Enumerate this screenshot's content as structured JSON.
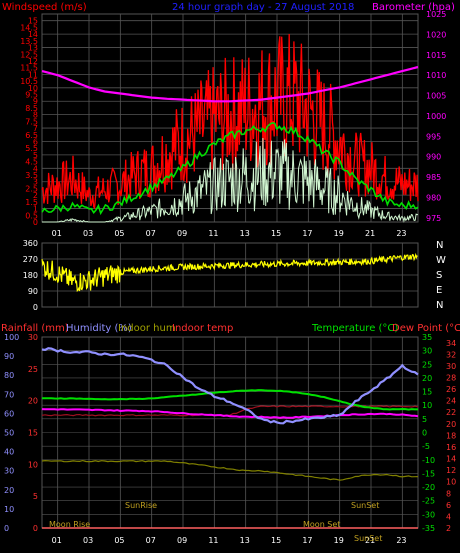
{
  "header": {
    "left_title": "Windspeed (m/s)",
    "center_title": "24 hour graph day - 27 August 2018",
    "right_title": "Barometer (hpa)"
  },
  "bottom_header": {
    "rainfall": "Rainfall (mm)",
    "humidity": "Humidity (%)",
    "indoor_hum": "Indoor hum",
    "indoor_temp": "Indoor temp",
    "temperature": "Temperature (°C)",
    "dew_point": "Dew Point (°C)"
  },
  "colors": {
    "wind_gust": "#ff0000",
    "wind_avg": "#00e000",
    "wind_low": "#d0f5d0",
    "barometer": "#ff00ff",
    "direction": "#ffff00",
    "humidity": "#9090ff",
    "indoor_hum": "#808000",
    "indoor_temp": "#a01020",
    "temperature": "#00e000",
    "dew_point": "#ff2020",
    "rainfall": "#ff6060",
    "grid": "#555555"
  },
  "chart_data": [
    {
      "type": "line",
      "title": "24 hour graph day - 27 August 2018",
      "xlabel": "",
      "x_ticks": [
        "01",
        "03",
        "05",
        "07",
        "09",
        "11",
        "13",
        "15",
        "17",
        "19",
        "21",
        "23"
      ],
      "y_left_label": "Windspeed (m/s)",
      "y_left_ticks": [
        "0",
        "0.5",
        "1",
        "1.5",
        "2",
        "2.5",
        "3",
        "3.5",
        "4",
        "4.5",
        "5",
        "5.5",
        "6",
        "6.5",
        "7",
        "7.5",
        "8",
        "8.5",
        "9",
        "9.5",
        "10",
        "10.5",
        "11",
        "11.5",
        "12",
        "12.5",
        "13",
        "13.5",
        "14",
        "14.5",
        "15"
      ],
      "ylim_left": [
        0,
        15.5
      ],
      "y_right_label": "Barometer (hpa)",
      "y_right_ticks": [
        "975",
        "980",
        "985",
        "990",
        "995",
        "1000",
        "1005",
        "1010",
        "1015",
        "1020",
        "1025"
      ],
      "ylim_right": [
        974,
        1025
      ],
      "x_hours": [
        0,
        1,
        2,
        3,
        4,
        5,
        6,
        7,
        8,
        9,
        10,
        11,
        12,
        13,
        14,
        15,
        16,
        17,
        18,
        19,
        20,
        21,
        22,
        23,
        24
      ],
      "series": [
        {
          "name": "gust",
          "values": [
            3,
            3.5,
            4,
            2.5,
            3,
            3.5,
            4.5,
            5,
            6.5,
            7.5,
            8.5,
            9.5,
            10,
            10.5,
            11,
            11.5,
            11.5,
            10.5,
            9,
            7.5,
            5.5,
            5,
            4,
            3.5,
            3.5
          ]
        },
        {
          "name": "average",
          "values": [
            0.8,
            1,
            1.2,
            0.8,
            1,
            1.4,
            2,
            2.6,
            3.2,
            4,
            5,
            5.8,
            6.4,
            6.8,
            7,
            7.2,
            6.8,
            6.2,
            5.2,
            4.4,
            3.2,
            2.4,
            1.5,
            1.2,
            1.3
          ]
        },
        {
          "name": "low",
          "values": [
            0,
            0,
            0.2,
            0,
            0,
            0.3,
            0.6,
            0.9,
            1.3,
            1.8,
            2.4,
            3,
            3.5,
            3.8,
            4,
            4.1,
            3.8,
            3.4,
            2.8,
            2.2,
            1.4,
            0.9,
            0.5,
            0.3,
            0.4
          ]
        },
        {
          "name": "barometer",
          "values": [
            1011,
            1010,
            1008.5,
            1007,
            1006,
            1005.5,
            1005,
            1004.5,
            1004.2,
            1004,
            1003.8,
            1003.6,
            1003.6,
            1003.8,
            1004,
            1004.5,
            1005,
            1005.5,
            1006.3,
            1007,
            1008,
            1009,
            1010,
            1011,
            1012
          ]
        }
      ]
    },
    {
      "type": "line",
      "title": "",
      "x_ticks": [
        "01",
        "03",
        "05",
        "07",
        "09",
        "11",
        "13",
        "15",
        "17",
        "19",
        "21",
        "23"
      ],
      "y_ticks": [
        "0",
        "90",
        "180",
        "270",
        "360"
      ],
      "ylim": [
        0,
        360
      ],
      "side_labels": [
        "N",
        "W",
        "S",
        "E",
        "N"
      ],
      "x_hours": [
        0,
        1,
        2,
        3,
        4,
        5,
        6,
        7,
        8,
        9,
        10,
        11,
        12,
        13,
        14,
        15,
        16,
        17,
        18,
        19,
        20,
        21,
        22,
        23,
        24
      ],
      "series": [
        {
          "name": "direction",
          "values": [
            230,
            190,
            140,
            150,
            175,
            195,
            205,
            215,
            220,
            225,
            228,
            232,
            235,
            238,
            240,
            242,
            245,
            247,
            250,
            252,
            255,
            258,
            268,
            280,
            285
          ]
        }
      ]
    },
    {
      "type": "line",
      "title": "",
      "x_ticks": [
        "01",
        "03",
        "05",
        "07",
        "09",
        "11",
        "13",
        "15",
        "17",
        "19",
        "21",
        "23"
      ],
      "y_left_ticks": [
        "0",
        "5",
        "10",
        "15",
        "20",
        "25",
        "30"
      ],
      "ylim_rain": [
        0,
        30
      ],
      "y_hum_ticks": [
        "0",
        "10",
        "20",
        "30",
        "40",
        "50",
        "60",
        "70",
        "80",
        "90",
        "100"
      ],
      "ylim_humidity": [
        0,
        100
      ],
      "y_temp_ticks": [
        "-35",
        "-30",
        "-25",
        "-20",
        "-15",
        "-10",
        "-5",
        "0",
        "5",
        "10",
        "15",
        "20",
        "25",
        "30",
        "35"
      ],
      "ylim_temp": [
        -35,
        35
      ],
      "y_indoor_ticks": [
        "2",
        "4",
        "6",
        "8",
        "10",
        "12",
        "14",
        "16",
        "18",
        "20",
        "22",
        "24",
        "26",
        "28",
        "30",
        "32",
        "34"
      ],
      "ylim_indoor": [
        2,
        35
      ],
      "annotations": [
        "Moon Rise",
        "SunRise",
        "SunSet",
        "Moon Set",
        "SunSet"
      ],
      "x_hours": [
        0,
        1,
        2,
        3,
        4,
        5,
        6,
        7,
        8,
        9,
        10,
        11,
        12,
        13,
        14,
        15,
        16,
        17,
        18,
        19,
        20,
        21,
        22,
        23,
        24
      ],
      "series": [
        {
          "name": "humidity",
          "values": [
            94,
            93,
            92,
            92,
            91,
            91,
            90,
            88,
            85,
            79,
            73,
            69,
            66,
            62,
            57,
            55,
            56,
            57,
            58,
            59,
            66,
            72,
            78,
            85,
            80
          ]
        },
        {
          "name": "temperature",
          "values": [
            12.5,
            12.5,
            12.5,
            12.3,
            12.2,
            12.2,
            12.3,
            12.5,
            13,
            13.5,
            14,
            14.6,
            15,
            15.4,
            15.5,
            15.3,
            14.8,
            14,
            13,
            11.5,
            10,
            9,
            8.5,
            8.5,
            8.5
          ]
        },
        {
          "name": "dew_point",
          "values": [
            8.5,
            8.5,
            8.4,
            8.3,
            8.2,
            8,
            8,
            7.8,
            7.5,
            7,
            6.7,
            6.4,
            6,
            5.8,
            5.7,
            5.5,
            5.5,
            5.8,
            6,
            6.4,
            6.6,
            6.8,
            6.8,
            6.5,
            6
          ]
        },
        {
          "name": "indoor_hum",
          "values": [
            35,
            35,
            35,
            35,
            35,
            35,
            35,
            35,
            35,
            34,
            33,
            32,
            31,
            30,
            30,
            29,
            28,
            27,
            26,
            25,
            27,
            28,
            28,
            27,
            27
          ]
        },
        {
          "name": "indoor_temp",
          "values": [
            21.5,
            21.5,
            21.5,
            21.5,
            21.5,
            21.5,
            21.5,
            21.5,
            21.5,
            21.5,
            21.5,
            21.5,
            21.5,
            22.5,
            23,
            23,
            23,
            23,
            23,
            23,
            23,
            23,
            23,
            23,
            23
          ]
        },
        {
          "name": "rainfall",
          "values": [
            0,
            0,
            0,
            0,
            0,
            0,
            0,
            0,
            0,
            0,
            0,
            0,
            0,
            0,
            0,
            0,
            0,
            0,
            0,
            0,
            0,
            0,
            0,
            0,
            0
          ]
        }
      ]
    }
  ]
}
